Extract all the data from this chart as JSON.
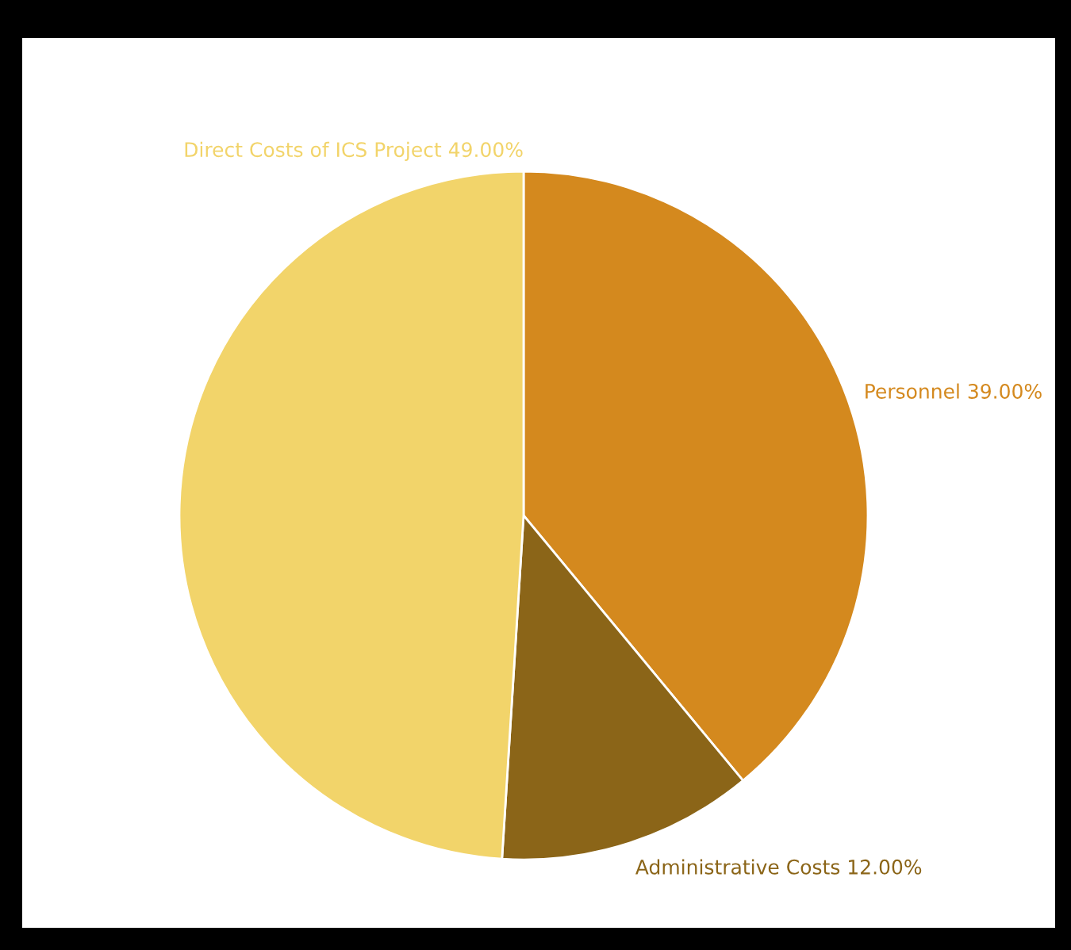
{
  "chart_data": {
    "type": "pie",
    "categories": [
      "Personnel",
      "Administrative Costs",
      "Direct Costs of ICS Project"
    ],
    "values": [
      39,
      12,
      49
    ],
    "colors": [
      "#d4891e",
      "#8b6518",
      "#f2d46a"
    ],
    "value_labels": [
      "39.00%",
      "12.00%",
      "49.00%"
    ]
  }
}
